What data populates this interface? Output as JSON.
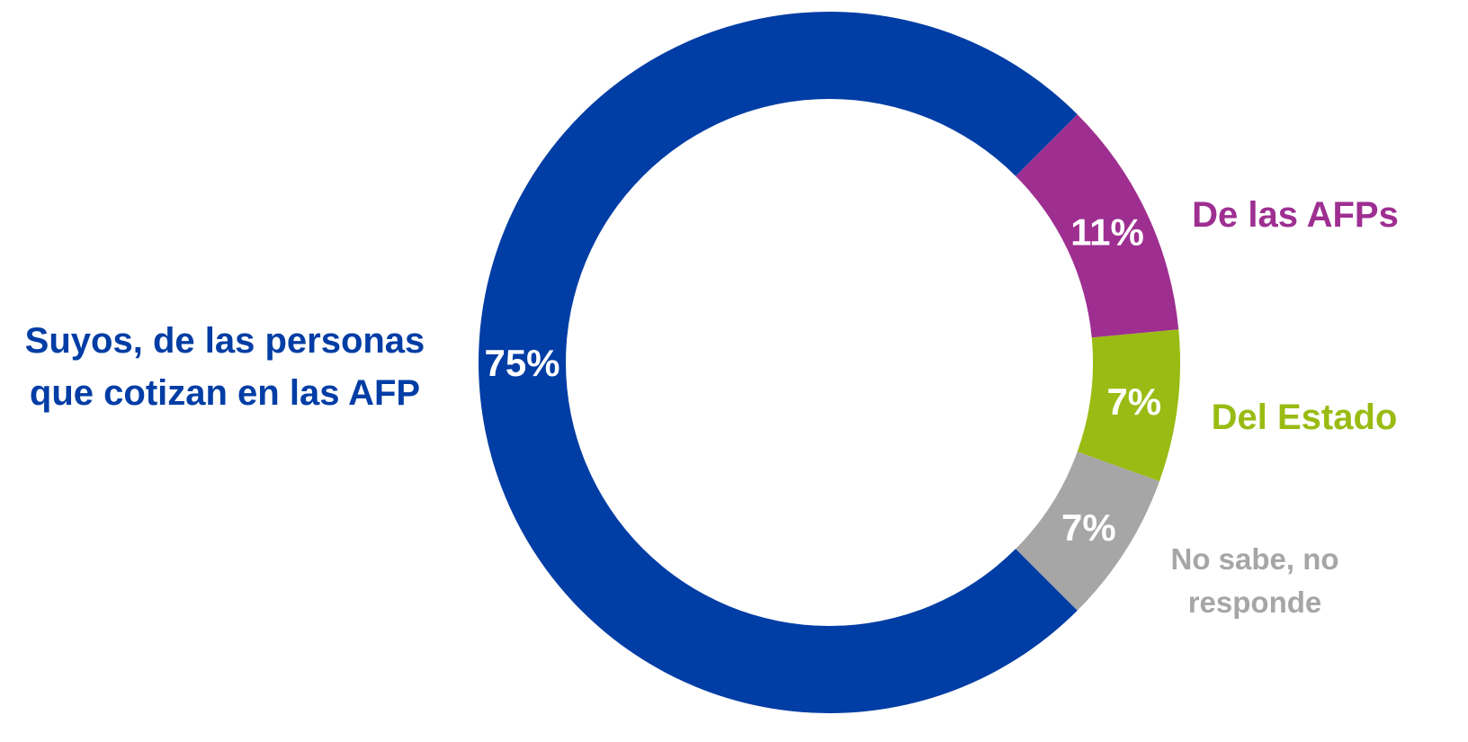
{
  "chart_data": {
    "type": "donut",
    "categories": [
      "Suyos, de las personas que cotizan en las AFP",
      "De las AFPs",
      "Del Estado",
      "No sabe, no responde"
    ],
    "values": [
      75,
      11,
      7,
      7
    ],
    "value_labels": [
      "75%",
      "11%",
      "7%",
      "7%"
    ],
    "colors": [
      "#003da5",
      "#9e2f91",
      "#9abb13",
      "#a6a6a6"
    ]
  }
}
